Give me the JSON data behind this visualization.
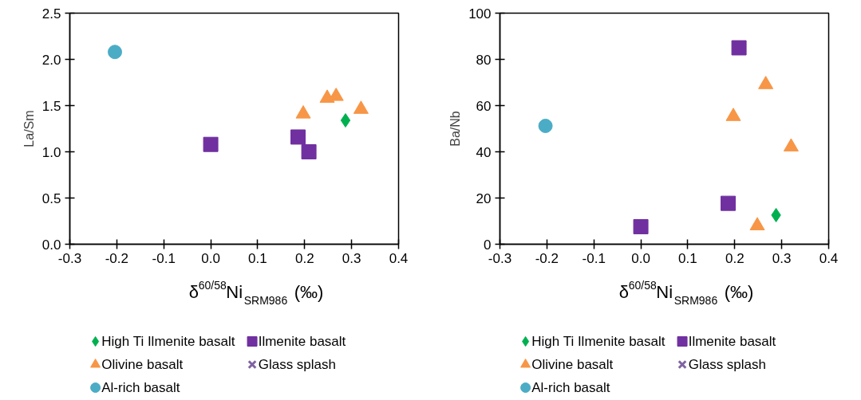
{
  "chart_data": [
    {
      "type": "scatter",
      "xlabel": "δ$^{60/58}$Ni$_{SRM986}$  (‰)",
      "ylabel": "La/Sm",
      "xlim": [
        -0.3,
        0.4
      ],
      "xticks": [
        -0.3,
        -0.2,
        -0.1,
        {
          "value": 0,
          "label": "0.0"
        },
        0.1,
        0.2,
        0.3,
        0.4
      ],
      "ylim": [
        0,
        2.5
      ],
      "yticks": [
        {
          "value": 0,
          "label": "0.0"
        },
        0.5,
        {
          "value": 1,
          "label": "1.0"
        },
        1.5,
        {
          "value": 2,
          "label": "2.0"
        },
        2.5
      ],
      "grid": false,
      "legend": "bottom",
      "series": [
        {
          "name": "High Ti Ilmenite basalt",
          "color": "#00b050",
          "marker": "diamond",
          "x": [
            0.287
          ],
          "values": [
            1.34
          ]
        },
        {
          "name": "Ilmenite basalt",
          "color": "#7030a0",
          "marker": "square",
          "x": [
            0.0,
            0.186,
            0.209
          ],
          "values": [
            1.08,
            1.16,
            1.0
          ]
        },
        {
          "name": "Olivine basalt",
          "color": "#f79646",
          "marker": "triangle",
          "x": [
            0.197,
            0.248,
            0.267,
            0.32
          ],
          "values": [
            1.41,
            1.58,
            1.6,
            1.46
          ]
        },
        {
          "name": "Glass splash",
          "color": "#8064a2",
          "marker": "cross"
        },
        {
          "name": "Al-rich basalt",
          "color": "#4bacc6",
          "marker": "circle",
          "x": [
            -0.204
          ],
          "values": [
            2.08
          ]
        }
      ]
    },
    {
      "type": "scatter",
      "xlabel": "δ$^{60/58}$Ni$_{SRM986}$  (‰)",
      "ylabel": "Ba/Nb",
      "xlim": [
        -0.3,
        0.4
      ],
      "xticks": [
        -0.3,
        -0.2,
        -0.1,
        {
          "value": 0,
          "label": "0.0"
        },
        0.1,
        0.2,
        0.3,
        0.4
      ],
      "ylim": [
        0,
        100
      ],
      "yticks": [
        0,
        20,
        40,
        60,
        80,
        100
      ],
      "grid": false,
      "legend": "bottom",
      "series": [
        {
          "name": "High Ti Ilmenite basalt",
          "color": "#00b050",
          "marker": "diamond",
          "x": [
            0.288
          ],
          "values": [
            12.6
          ]
        },
        {
          "name": "Ilmenite basalt",
          "color": "#7030a0",
          "marker": "square",
          "x": [
            0.0,
            0.186,
            0.209
          ],
          "values": [
            7.6,
            17.7,
            85
          ]
        },
        {
          "name": "Olivine basalt",
          "color": "#f79646",
          "marker": "triangle",
          "x": [
            0.197,
            0.266,
            0.32,
            0.248
          ],
          "values": [
            55.3,
            69.1,
            42.1,
            8.0
          ]
        },
        {
          "name": "Glass splash",
          "color": "#8064a2",
          "marker": "cross"
        },
        {
          "name": "Al-rich basalt",
          "color": "#4bacc6",
          "marker": "circle",
          "x": [
            -0.203
          ],
          "values": [
            51.2
          ]
        }
      ]
    }
  ]
}
